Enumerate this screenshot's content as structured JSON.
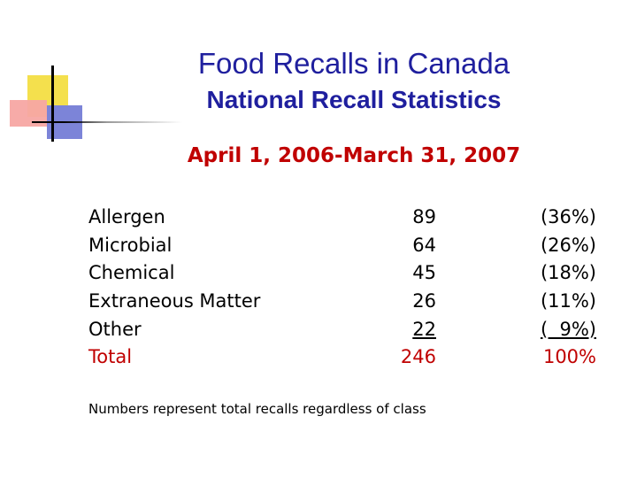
{
  "slide": {
    "title": "Food Recalls in Canada",
    "subtitle": "National Recall Statistics",
    "date_range": "April 1, 2006-March 31, 2007",
    "rows": [
      {
        "category": "Allergen",
        "count": "89",
        "percent": "(36%)"
      },
      {
        "category": "Microbial",
        "count": "64",
        "percent": "(26%)"
      },
      {
        "category": "Chemical",
        "count": "45",
        "percent": "(18%)"
      },
      {
        "category": "Extraneous Matter",
        "count": "26",
        "percent": "(11%)"
      },
      {
        "category": "Other",
        "count": "22",
        "percent": "(  9%)"
      }
    ],
    "total": {
      "category": "Total",
      "count": "246",
      "percent": "100%"
    },
    "note": "Numbers represent total recalls regardless of class"
  },
  "colors": {
    "title": "#1f1f9e",
    "accent_red": "#c00000",
    "deco_yellow": "#f4e04d",
    "deco_red": "#f7a7a3",
    "deco_blue": "#7c84d8"
  }
}
